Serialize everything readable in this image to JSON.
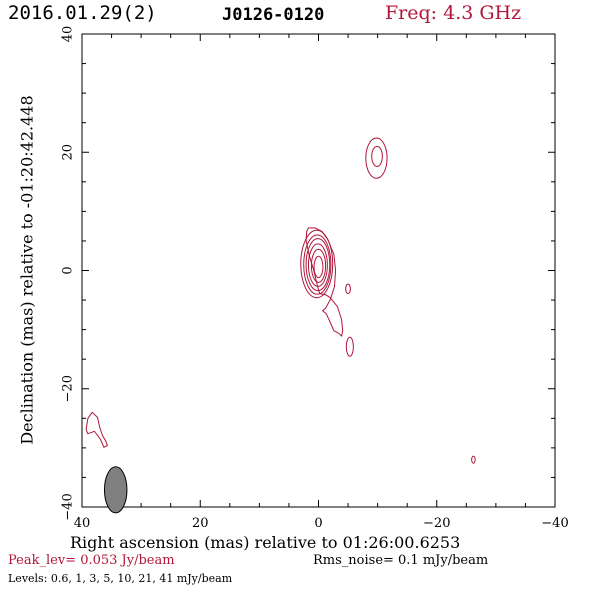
{
  "header": {
    "date": "2016.01.29(2)",
    "source": "J0126-0120",
    "frequency": "Freq: 4.3 GHz"
  },
  "axes": {
    "xlabel": "Right ascension (mas) relative to 01:26:00.6253",
    "ylabel": "Declination (mas) relative to -01:20:42.448"
  },
  "footer": {
    "peak": "Peak_lev=  0.053 Jy/beam",
    "rms": "Rms_noise=   0.1 mJy/beam",
    "levels": "Levels: 0.6,    1,    3,    5,   10,   21,   41  mJy/beam"
  },
  "colors": {
    "contour": "#b0163a",
    "beam_fill": "#808080"
  },
  "chart_data": {
    "type": "contour",
    "xlabel": "Right ascension (mas) relative to 01:26:00.6253",
    "ylabel": "Declination (mas) relative to -01:20:42.448",
    "xlim": [
      40,
      -40
    ],
    "ylim": [
      -40,
      40
    ],
    "xticks": [
      40,
      20,
      0,
      -20,
      -40
    ],
    "yticks": [
      -40,
      -20,
      0,
      20,
      40
    ],
    "contour_levels_mJy": [
      0.6,
      1,
      3,
      5,
      10,
      21,
      41
    ],
    "peak_Jy_per_beam": 0.053,
    "rms_mJy_per_beam": 0.1,
    "beam": {
      "x": 34.3,
      "y": -37.1,
      "major": 3.9,
      "minor": 1.9,
      "pa_deg": 0
    },
    "core_nested": [
      {
        "x": 0.3,
        "y": 1.1,
        "rx": 2.7,
        "ry": 5.7
      },
      {
        "x": 0.2,
        "y": 1.0,
        "rx": 2.3,
        "ry": 5.0
      },
      {
        "x": 0.1,
        "y": 1.0,
        "rx": 2.0,
        "ry": 4.4
      },
      {
        "x": 0.1,
        "y": 0.9,
        "rx": 1.6,
        "ry": 3.6
      },
      {
        "x": 0.0,
        "y": 0.8,
        "rx": 1.2,
        "ry": 2.8
      },
      {
        "x": 0.0,
        "y": 0.6,
        "rx": 0.75,
        "ry": 1.8
      }
    ],
    "outer_contour": [
      [
        1.7,
        7.2
      ],
      [
        0.6,
        7.2
      ],
      [
        -0.6,
        6.6
      ],
      [
        -1.6,
        5.2
      ],
      [
        -2.6,
        2.7
      ],
      [
        -2.9,
        0.0
      ],
      [
        -2.7,
        -2.7
      ],
      [
        -2.0,
        -4.9
      ],
      [
        -1.2,
        -6.4
      ],
      [
        -0.7,
        -6.8
      ],
      [
        -1.3,
        -7.3
      ],
      [
        -2.0,
        -8.8
      ],
      [
        -2.6,
        -10.2
      ],
      [
        -3.4,
        -10.6
      ],
      [
        -3.9,
        -11.1
      ],
      [
        -4.1,
        -10.2
      ],
      [
        -3.9,
        -8.3
      ],
      [
        -3.2,
        -6.1
      ],
      [
        -2.0,
        -4.6
      ],
      [
        -1.2,
        -4.1
      ],
      [
        -0.2,
        -3.9
      ],
      [
        0.2,
        -2.5
      ],
      [
        0.8,
        0.0
      ],
      [
        1.6,
        2.7
      ],
      [
        2.1,
        5.1
      ],
      [
        2.0,
        6.6
      ]
    ],
    "components": [
      {
        "x": -9.9,
        "y": 19.3,
        "rx": 0.9,
        "ry": 1.7
      },
      {
        "x": -9.8,
        "y": 19.0,
        "rx": 1.8,
        "ry": 3.4
      },
      {
        "x": -5.0,
        "y": -3.1,
        "rx": 0.4,
        "ry": 0.8
      },
      {
        "x": -5.3,
        "y": -12.9,
        "rx": 0.6,
        "ry": 1.6
      },
      {
        "x": -26.2,
        "y": -32.0,
        "rx": 0.3,
        "ry": 0.6
      }
    ],
    "extended_region": [
      [
        39.3,
        -26.9
      ],
      [
        39.0,
        -25.0
      ],
      [
        38.3,
        -24.0
      ],
      [
        37.4,
        -24.8
      ],
      [
        37.0,
        -26.5
      ],
      [
        36.5,
        -28.0
      ],
      [
        36.0,
        -28.8
      ],
      [
        35.7,
        -29.6
      ],
      [
        36.3,
        -29.9
      ],
      [
        36.9,
        -28.5
      ],
      [
        37.9,
        -27.2
      ],
      [
        39.0,
        -27.6
      ]
    ]
  }
}
